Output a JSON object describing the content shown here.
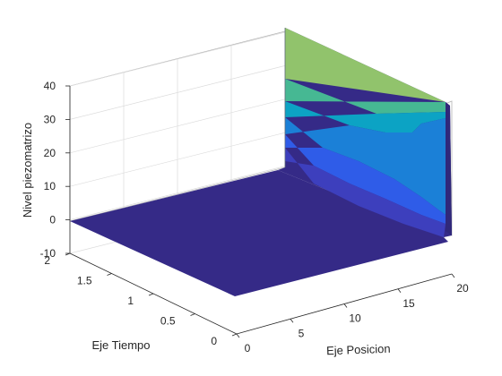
{
  "chart_data": {
    "type": "surface",
    "colormap": "parula",
    "grid": true,
    "xlabel": "Eje Posicion",
    "ylabel": "Eje Tiempo",
    "zlabel": "Nivel piezomatrizo",
    "xlim": [
      0,
      20
    ],
    "ylim": [
      0,
      2
    ],
    "zlim": [
      -10,
      40
    ],
    "x_ticks": [
      0,
      5,
      10,
      15,
      20
    ],
    "y_ticks": [
      0,
      0.5,
      1,
      1.5,
      2
    ],
    "z_ticks": [
      -10,
      0,
      10,
      20,
      30,
      40
    ],
    "x_tick_labels": [
      "0",
      "5",
      "10",
      "15",
      "20"
    ],
    "y_tick_labels": [
      "0",
      "0.5",
      "1",
      "1.5",
      "2"
    ],
    "z_tick_labels": [
      "-10",
      "0",
      "10",
      "20",
      "30",
      "40"
    ],
    "color_bands": [
      "#352a87",
      "#3d3fbd",
      "#2f5ce8",
      "#1b80d7",
      "#0ca3c4",
      "#46b893",
      "#91c36c"
    ],
    "surface_points": [
      {
        "x": 0,
        "y": 0,
        "z": 0
      },
      {
        "x": 0,
        "y": 2,
        "z": 0
      },
      {
        "x": 18.5,
        "y": 0,
        "z": 0
      },
      {
        "x": 18.5,
        "y": 2,
        "z": 0
      },
      {
        "x": 20,
        "y": 2,
        "z": 43
      },
      {
        "x": 20,
        "y": 0,
        "z": 35
      },
      {
        "x": 20,
        "y": 1,
        "z": 31
      },
      {
        "x": 20,
        "y": 0.5,
        "z": 24
      }
    ]
  }
}
